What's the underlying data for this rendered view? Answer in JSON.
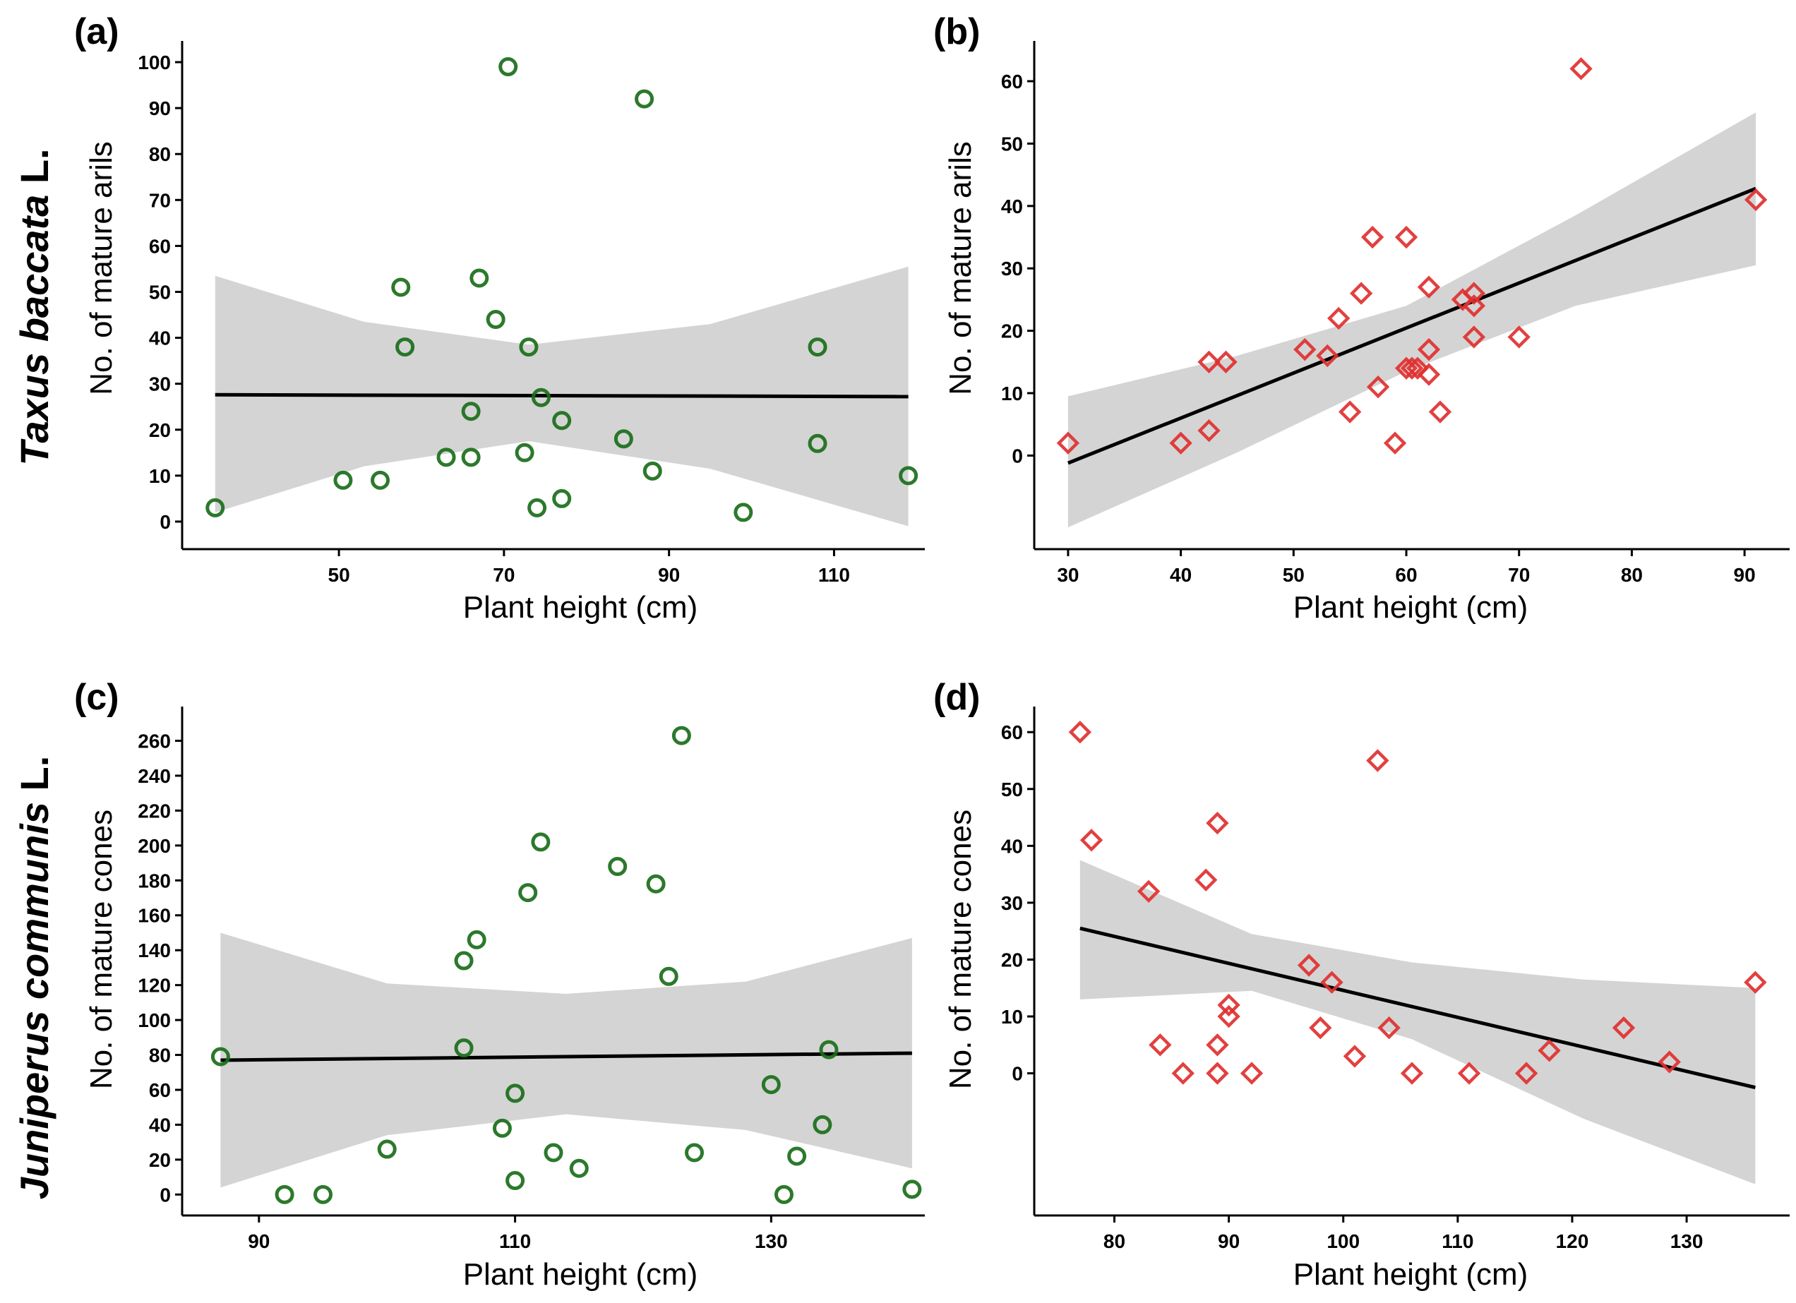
{
  "row_labels": [
    {
      "genus": "Taxus baccata",
      "suffix": " L."
    },
    {
      "genus": "Juniperus communis",
      "suffix": " L."
    }
  ],
  "colors": {
    "green_marker": "#1a6e1a",
    "red_marker": "#e03030",
    "ci_band": "#d4d4d4",
    "fit_line": "#000000",
    "axis": "#000000"
  },
  "chart_data": [
    {
      "panel_label": "(a)",
      "type": "scatter",
      "marker": "circle",
      "color": "#1a6e1a",
      "xlabel": "Plant height (cm)",
      "ylabel": "No. of mature arils",
      "xlim": [
        31,
        121
      ],
      "ylim": [
        -6,
        104
      ],
      "xticks": [
        50,
        70,
        90,
        110
      ],
      "yticks": [
        0,
        10,
        20,
        30,
        40,
        50,
        60,
        70,
        80,
        90,
        100
      ],
      "points": [
        {
          "x": 35,
          "y": 3
        },
        {
          "x": 50.5,
          "y": 9
        },
        {
          "x": 55,
          "y": 9
        },
        {
          "x": 57.5,
          "y": 51
        },
        {
          "x": 58,
          "y": 38
        },
        {
          "x": 63,
          "y": 14
        },
        {
          "x": 66,
          "y": 24
        },
        {
          "x": 66,
          "y": 14
        },
        {
          "x": 67,
          "y": 53
        },
        {
          "x": 69,
          "y": 44
        },
        {
          "x": 70.5,
          "y": 99
        },
        {
          "x": 72.5,
          "y": 15
        },
        {
          "x": 73,
          "y": 38
        },
        {
          "x": 74,
          "y": 3
        },
        {
          "x": 74.5,
          "y": 27
        },
        {
          "x": 77,
          "y": 22
        },
        {
          "x": 77,
          "y": 5
        },
        {
          "x": 84.5,
          "y": 18
        },
        {
          "x": 87,
          "y": 92
        },
        {
          "x": 88,
          "y": 11
        },
        {
          "x": 99,
          "y": 2
        },
        {
          "x": 108,
          "y": 38
        },
        {
          "x": 108,
          "y": 17
        },
        {
          "x": 119,
          "y": 10
        }
      ],
      "fit": {
        "x": [
          35,
          119
        ],
        "y": [
          27.6,
          27.2
        ]
      },
      "ci_band": {
        "x": [
          35,
          53,
          73,
          95,
          119
        ],
        "upper": [
          53.5,
          43.5,
          38.5,
          43,
          55.5
        ],
        "lower": [
          2,
          12,
          17.5,
          11.5,
          -1
        ]
      }
    },
    {
      "panel_label": "(b)",
      "type": "scatter",
      "marker": "diamond",
      "color": "#e03030",
      "xlabel": "Plant height (cm)",
      "ylabel": "No. of mature arils",
      "xlim": [
        27,
        94
      ],
      "ylim": [
        -15,
        66
      ],
      "xticks": [
        30,
        40,
        50,
        60,
        70,
        80,
        90
      ],
      "yticks": [
        0,
        10,
        20,
        30,
        40,
        50,
        60
      ],
      "points": [
        {
          "x": 30,
          "y": 2
        },
        {
          "x": 40,
          "y": 2
        },
        {
          "x": 42.5,
          "y": 15
        },
        {
          "x": 42.5,
          "y": 4
        },
        {
          "x": 44,
          "y": 15
        },
        {
          "x": 51,
          "y": 17
        },
        {
          "x": 53,
          "y": 16
        },
        {
          "x": 54,
          "y": 22
        },
        {
          "x": 55,
          "y": 7
        },
        {
          "x": 56,
          "y": 26
        },
        {
          "x": 57,
          "y": 35
        },
        {
          "x": 57.5,
          "y": 11
        },
        {
          "x": 59,
          "y": 2
        },
        {
          "x": 60,
          "y": 35
        },
        {
          "x": 60,
          "y": 14
        },
        {
          "x": 60.5,
          "y": 14
        },
        {
          "x": 61,
          "y": 14
        },
        {
          "x": 62,
          "y": 27
        },
        {
          "x": 62,
          "y": 17
        },
        {
          "x": 62,
          "y": 13
        },
        {
          "x": 63,
          "y": 7
        },
        {
          "x": 65,
          "y": 25
        },
        {
          "x": 66,
          "y": 26
        },
        {
          "x": 66,
          "y": 24
        },
        {
          "x": 66,
          "y": 19
        },
        {
          "x": 70,
          "y": 19
        },
        {
          "x": 75.5,
          "y": 62
        },
        {
          "x": 91,
          "y": 41
        }
      ],
      "fit": {
        "x": [
          30,
          91
        ],
        "y": [
          -1.2,
          42.8
        ]
      },
      "ci_band": {
        "x": [
          30,
          45,
          60,
          75,
          91
        ],
        "upper": [
          9.5,
          16,
          24,
          38.5,
          55
        ],
        "lower": [
          -11.5,
          0.5,
          13.5,
          24,
          30.5
        ]
      }
    },
    {
      "panel_label": "(c)",
      "type": "scatter",
      "marker": "circle",
      "color": "#1a6e1a",
      "xlabel": "Plant height (cm)",
      "ylabel": "No. of mature cones",
      "xlim": [
        84,
        142
      ],
      "ylim": [
        -12,
        278
      ],
      "xticks": [
        90,
        110,
        130
      ],
      "yticks": [
        0,
        20,
        40,
        60,
        80,
        100,
        120,
        140,
        160,
        180,
        200,
        220,
        240,
        260
      ],
      "points": [
        {
          "x": 87,
          "y": 79
        },
        {
          "x": 92,
          "y": 0
        },
        {
          "x": 95,
          "y": 0
        },
        {
          "x": 100,
          "y": 26
        },
        {
          "x": 106,
          "y": 134
        },
        {
          "x": 106,
          "y": 84
        },
        {
          "x": 107,
          "y": 146
        },
        {
          "x": 109,
          "y": 38
        },
        {
          "x": 110,
          "y": 58
        },
        {
          "x": 110,
          "y": 8
        },
        {
          "x": 111,
          "y": 173
        },
        {
          "x": 112,
          "y": 202
        },
        {
          "x": 113,
          "y": 24
        },
        {
          "x": 115,
          "y": 15
        },
        {
          "x": 118,
          "y": 188
        },
        {
          "x": 121,
          "y": 178
        },
        {
          "x": 122,
          "y": 125
        },
        {
          "x": 123,
          "y": 263
        },
        {
          "x": 124,
          "y": 24
        },
        {
          "x": 130,
          "y": 63
        },
        {
          "x": 131,
          "y": 0
        },
        {
          "x": 132,
          "y": 22
        },
        {
          "x": 134,
          "y": 40
        },
        {
          "x": 134.5,
          "y": 83
        },
        {
          "x": 141,
          "y": 3
        }
      ],
      "fit": {
        "x": [
          87,
          141
        ],
        "y": [
          77,
          81
        ]
      },
      "ci_band": {
        "x": [
          87,
          100,
          114,
          128,
          141
        ],
        "upper": [
          150,
          121,
          115,
          122,
          147
        ],
        "lower": [
          4,
          34,
          46,
          37,
          15
        ]
      }
    },
    {
      "panel_label": "(d)",
      "type": "scatter",
      "marker": "diamond",
      "color": "#e03030",
      "xlabel": "Plant height (cm)",
      "ylabel": "No. of mature cones",
      "xlim": [
        73,
        139
      ],
      "ylim": [
        -25,
        64
      ],
      "xticks": [
        80,
        90,
        100,
        110,
        120,
        130
      ],
      "yticks": [
        0,
        10,
        20,
        30,
        40,
        50,
        60
      ],
      "points": [
        {
          "x": 77,
          "y": 60
        },
        {
          "x": 78,
          "y": 41
        },
        {
          "x": 83,
          "y": 32
        },
        {
          "x": 84,
          "y": 5
        },
        {
          "x": 86,
          "y": 0
        },
        {
          "x": 88,
          "y": 34
        },
        {
          "x": 89,
          "y": 44
        },
        {
          "x": 89,
          "y": 5
        },
        {
          "x": 89,
          "y": 0
        },
        {
          "x": 90,
          "y": 12
        },
        {
          "x": 90,
          "y": 10
        },
        {
          "x": 92,
          "y": 0
        },
        {
          "x": 97,
          "y": 19
        },
        {
          "x": 98,
          "y": 8
        },
        {
          "x": 99,
          "y": 16
        },
        {
          "x": 101,
          "y": 3
        },
        {
          "x": 103,
          "y": 55
        },
        {
          "x": 104,
          "y": 8
        },
        {
          "x": 106,
          "y": 0
        },
        {
          "x": 111,
          "y": 0
        },
        {
          "x": 116,
          "y": 0
        },
        {
          "x": 118,
          "y": 4
        },
        {
          "x": 124.5,
          "y": 8
        },
        {
          "x": 128.5,
          "y": 2
        },
        {
          "x": 136,
          "y": 16
        }
      ],
      "fit": {
        "x": [
          77,
          136
        ],
        "y": [
          25.5,
          -2.5
        ]
      },
      "ci_band": {
        "x": [
          77,
          92,
          106,
          121,
          136
        ],
        "upper": [
          37.5,
          24.5,
          19.5,
          16.5,
          15
        ],
        "lower": [
          13,
          14.5,
          6,
          -8,
          -19.5
        ]
      }
    }
  ]
}
